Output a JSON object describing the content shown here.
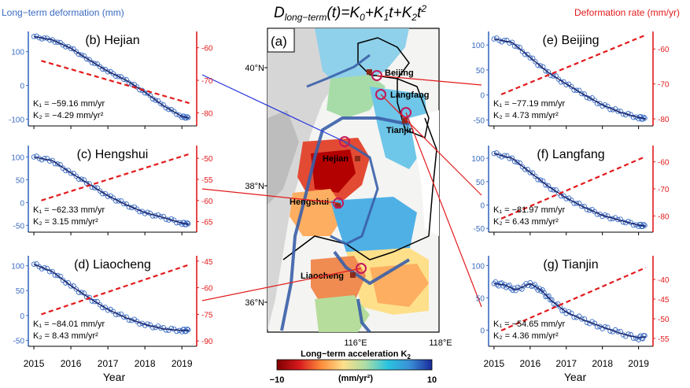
{
  "figure": {
    "equation": {
      "lhs_base": "D",
      "lhs_sub": "long−term",
      "lhs_arg": "(t)=",
      "k0": "K",
      "k0_sub": "0",
      "plus1": "+",
      "k1": "K",
      "k1_sub": "1",
      "k1_var": "t",
      "plus2": "+",
      "k2": "K",
      "k2_sub": "2",
      "k2_var": "t",
      "k2_exp": "2"
    },
    "left_axis_title": "Long−term deformation (mm)",
    "right_axis_title": "Deformation rate (mm/yr)",
    "xlabel": "Year",
    "year_ticks": [
      "2015",
      "2016",
      "2017",
      "2018",
      "2019"
    ]
  },
  "colors": {
    "deformation": "#3a6bc1",
    "rate": "#e31a1c",
    "fit": "#1c2163",
    "text": "#000000",
    "river": "#3a5fa8",
    "border": "#000000"
  },
  "map": {
    "label": "(a)",
    "lat_ticks": [
      "40°N",
      "38°N",
      "36°N"
    ],
    "lon_ticks": [
      "116°E",
      "118°E"
    ],
    "cities": [
      "Beijing",
      "Langfang",
      "Tianjin",
      "Hejian",
      "Hengshui",
      "Liaocheng"
    ],
    "colorbar": {
      "title": "Long−term acceleration K",
      "title_sub": "2",
      "units": "(mm/yr²)",
      "min": "−10",
      "max": "10",
      "colors": [
        "#7f0000",
        "#d7191c",
        "#fd8d3c",
        "#fee08b",
        "#abdda4",
        "#2bc4e0",
        "#3a8fd6",
        "#1a2a9c"
      ]
    }
  },
  "chart_data": [
    {
      "type": "line",
      "label": "(b) Hejian",
      "k1": "K₁ = −59.16 mm/yr",
      "k2": "K₂ = −4.29 mm/yr²",
      "x": [
        2015.0,
        2015.5,
        2016.0,
        2016.5,
        2017.0,
        2017.5,
        2018.0,
        2018.5,
        2019.0,
        2019.2
      ],
      "deformation": [
        145,
        135,
        110,
        75,
        42,
        15,
        -20,
        -60,
        -92,
        -97
      ],
      "y_ticks": [
        100,
        0,
        -100
      ],
      "ylim": [
        -120,
        160
      ],
      "rate": {
        "x": [
          2015.2,
          2019.2
        ],
        "y": [
          -64,
          -77
        ]
      },
      "rate_ticks": [
        -60,
        -70,
        -80
      ],
      "rate_lim": [
        -84,
        -55
      ]
    },
    {
      "type": "line",
      "label": "(c) Hengshui",
      "k1": "K₁ = −62.33 mm/yr",
      "k2": "K₂ = 3.15 mm/yr²",
      "x": [
        2015.0,
        2015.5,
        2016.0,
        2016.5,
        2017.0,
        2017.5,
        2018.0,
        2018.5,
        2019.0,
        2019.2
      ],
      "deformation": [
        100,
        92,
        65,
        40,
        15,
        -5,
        -22,
        -33,
        -45,
        -48
      ],
      "y_ticks": [
        100,
        50,
        0,
        -50
      ],
      "ylim": [
        -65,
        125
      ],
      "rate": {
        "x": [
          2015.2,
          2019.2
        ],
        "y": [
          -60,
          -49
        ]
      },
      "rate_ticks": [
        -50,
        -55,
        -60,
        -65
      ],
      "rate_lim": [
        -67.5,
        -47
      ]
    },
    {
      "type": "line",
      "label": "(d) Liaocheng",
      "k1": "K₁ = −84.01 mm/yr",
      "k2": "K₂ = 8.43 mm/yr²",
      "x": [
        2015.0,
        2015.5,
        2016.0,
        2016.5,
        2017.0,
        2017.5,
        2018.0,
        2018.5,
        2019.0,
        2019.2
      ],
      "deformation": [
        103,
        88,
        60,
        35,
        12,
        -5,
        -18,
        -27,
        -30,
        -30
      ],
      "y_ticks": [
        100,
        50,
        0,
        -50
      ],
      "ylim": [
        -62,
        120
      ],
      "rate": {
        "x": [
          2015.2,
          2019.2
        ],
        "y": [
          -75,
          -47
        ]
      },
      "rate_ticks": [
        -45,
        -60,
        -75,
        -90
      ],
      "rate_lim": [
        -93,
        -42
      ]
    },
    {
      "type": "line",
      "label": "(e) Beijing",
      "k1": "K₁ = −77.19 mm/yr",
      "k2": "K₂ = 4.73 mm/yr²",
      "x": [
        2015.0,
        2015.5,
        2016.0,
        2016.5,
        2017.0,
        2017.5,
        2018.0,
        2018.5,
        2019.0,
        2019.2
      ],
      "deformation": [
        112,
        105,
        75,
        45,
        22,
        0,
        -20,
        -35,
        -45,
        -48
      ],
      "y_ticks": [
        100,
        50,
        0,
        -50
      ],
      "ylim": [
        -62,
        127
      ],
      "rate": {
        "x": [
          2015.2,
          2019.2
        ],
        "y": [
          -73,
          -56
        ]
      },
      "rate_ticks": [
        -60,
        -70,
        -80
      ],
      "rate_lim": [
        -82,
        -55
      ]
    },
    {
      "type": "line",
      "label": "(f) Langfang",
      "k1": "K₁ = −81.97 mm/yr",
      "k2": "K₂ = 6.43 mm/yr²",
      "x": [
        2015.0,
        2015.5,
        2016.0,
        2016.5,
        2017.0,
        2017.5,
        2018.0,
        2018.5,
        2019.0,
        2019.2
      ],
      "deformation": [
        110,
        100,
        70,
        40,
        15,
        -5,
        -22,
        -33,
        -43,
        -45
      ],
      "y_ticks": [
        100,
        50,
        0,
        -50
      ],
      "ylim": [
        -58,
        127
      ],
      "rate": {
        "x": [
          2015.2,
          2019.2
        ],
        "y": [
          -81,
          -58
        ]
      },
      "rate_ticks": [
        -60,
        -70,
        -80
      ],
      "rate_lim": [
        -86,
        -54
      ]
    },
    {
      "type": "line",
      "label": "(g) Tianjin",
      "k1": "K₁ = −54.65 mm/yr",
      "k2": "K₂ = 4.36 mm/yr²",
      "x": [
        2015.0,
        2015.3,
        2015.6,
        2016.0,
        2016.3,
        2016.6,
        2017.0,
        2017.5,
        2018.0,
        2018.5,
        2019.0,
        2019.2
      ],
      "deformation": [
        72,
        70,
        62,
        72,
        62,
        45,
        28,
        15,
        5,
        -5,
        -12,
        -10
      ],
      "y_ticks": [
        100,
        50,
        0
      ],
      "ylim": [
        -25,
        115
      ],
      "rate": {
        "x": [
          2015.2,
          2019.2
        ],
        "y": [
          -53,
          -37
        ]
      },
      "rate_ticks": [
        -40,
        -45,
        -50,
        -55
      ],
      "rate_lim": [
        -57,
        -34
      ]
    }
  ]
}
